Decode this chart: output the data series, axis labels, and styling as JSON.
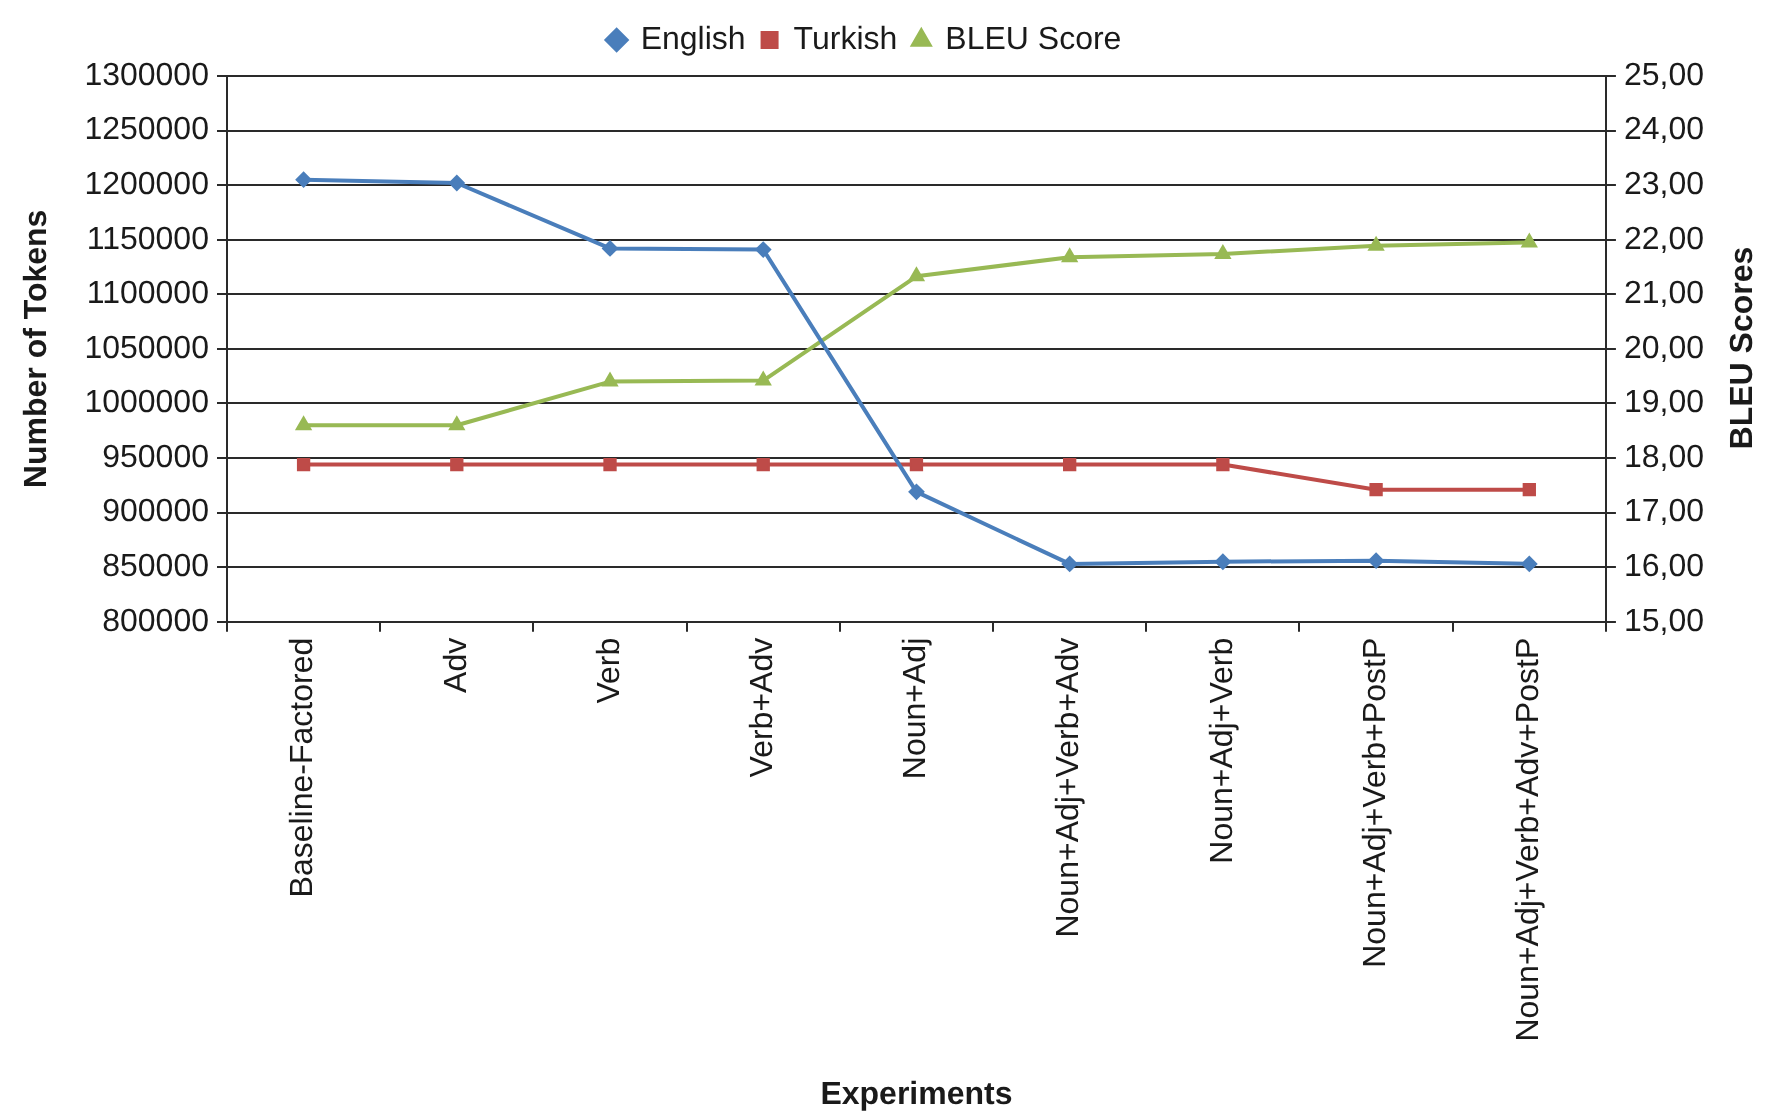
{
  "chart_data": {
    "type": "line",
    "xlabel": "Experiments",
    "ylabel": "Number of Tokens",
    "y2label": "BLEU Scores",
    "categories": [
      "Baseline-Factored",
      "Adv",
      "Verb",
      "Verb+Adv",
      "Noun+Adj",
      "Noun+Adj+Verb+Adv",
      "Noun+Adj+Verb",
      "Noun+Adj+Verb+PostP",
      "Noun+Adj+Verb+Adv+PostP"
    ],
    "series": [
      {
        "name": "English",
        "color": "#4a7ebb",
        "marker": "diamond",
        "values": [
          1205000,
          1202000,
          1142000,
          1141000,
          919000,
          853000,
          855000,
          856000,
          853000
        ]
      },
      {
        "name": "Turkish",
        "color": "#be4b48",
        "marker": "square",
        "values": [
          944000,
          944000,
          944000,
          944000,
          944000,
          944000,
          944000,
          921000,
          921000
        ]
      },
      {
        "name": "BLEU Score",
        "color": "#98b954",
        "marker": "triangle",
        "axis": "y2",
        "values": [
          18.6,
          18.6,
          19.4,
          19.42,
          21.33,
          21.68,
          21.74,
          21.89,
          21.95
        ]
      }
    ],
    "ylim": [
      800000,
      1300000
    ],
    "yticks": [
      800000,
      850000,
      900000,
      950000,
      1000000,
      1050000,
      1100000,
      1150000,
      1200000,
      1250000,
      1300000
    ],
    "y2lim": [
      15,
      25
    ],
    "y2ticks": [
      {
        "value": 15,
        "label": "15,00"
      },
      {
        "value": 16,
        "label": "16,00"
      },
      {
        "value": 17,
        "label": "17,00"
      },
      {
        "value": 18,
        "label": "18,00"
      },
      {
        "value": 19,
        "label": "19,00"
      },
      {
        "value": 20,
        "label": "20,00"
      },
      {
        "value": 21,
        "label": "21,00"
      },
      {
        "value": 22,
        "label": "22,00"
      },
      {
        "value": 23,
        "label": "23,00"
      },
      {
        "value": 24,
        "label": "24,00"
      },
      {
        "value": 25,
        "label": "25,00"
      }
    ],
    "grid": "y",
    "legend": "top"
  }
}
